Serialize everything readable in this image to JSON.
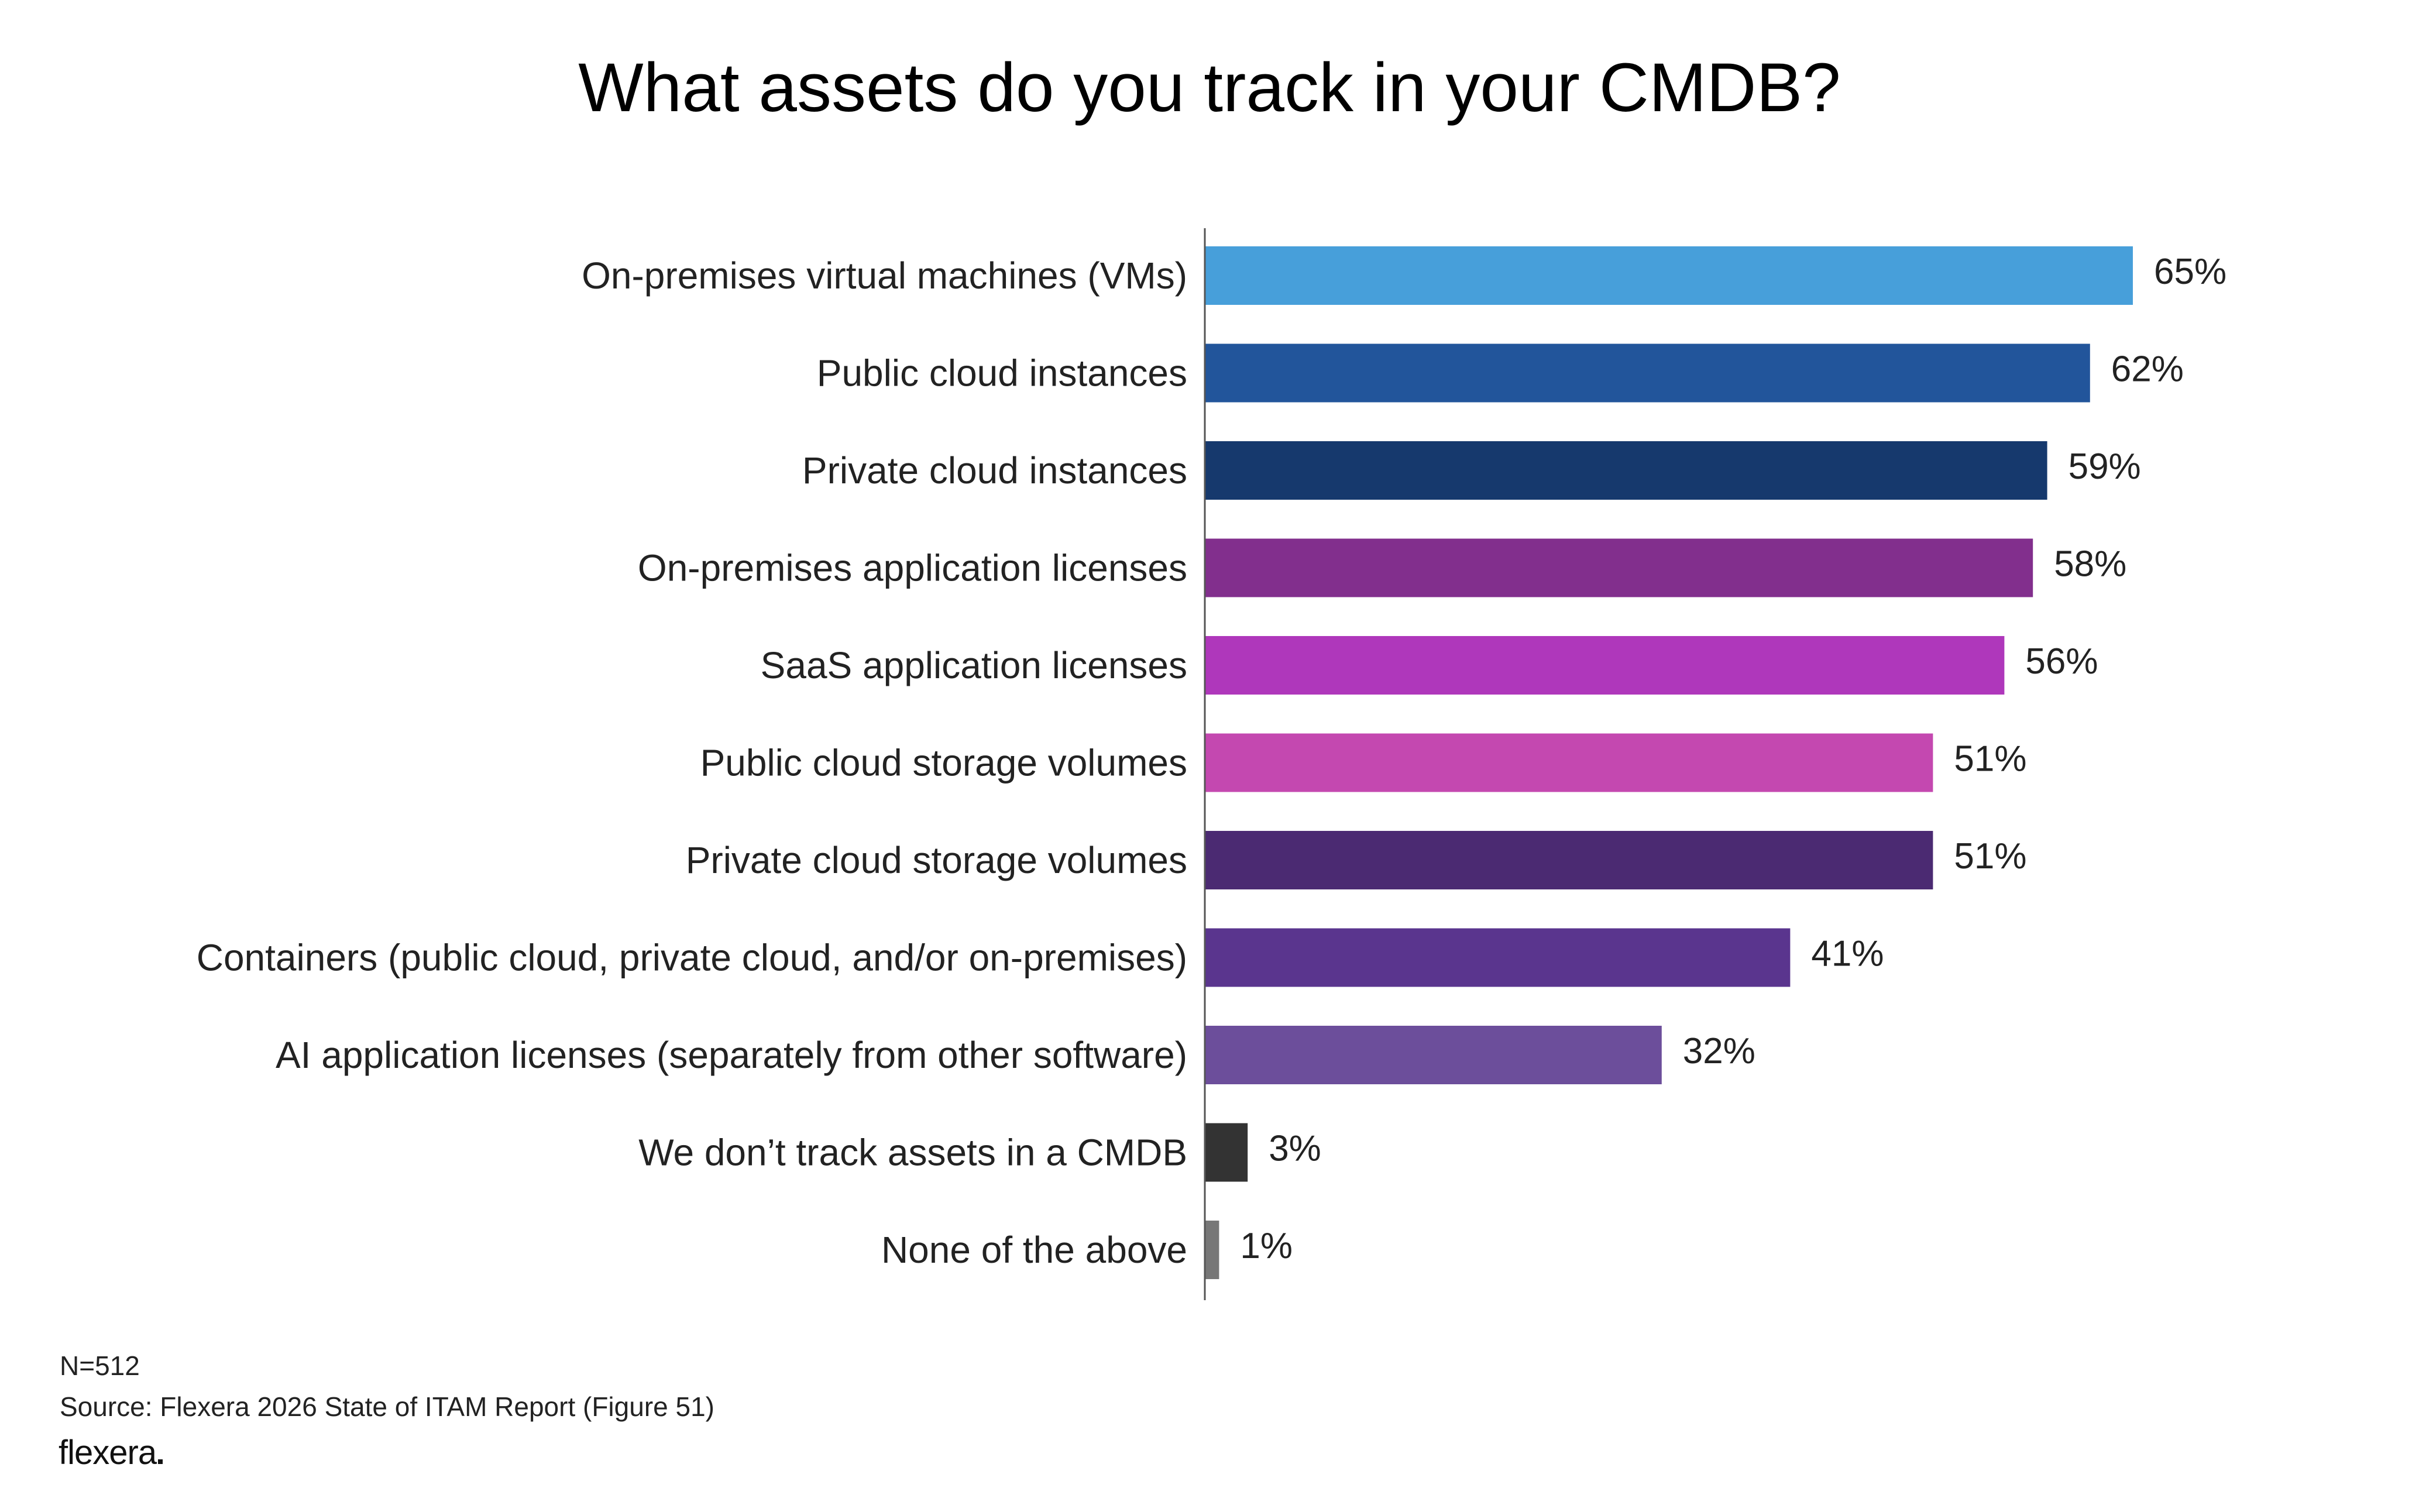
{
  "title": "What assets do you track in your CMDB?",
  "footer": {
    "n": "N=512",
    "source": "Source: Flexera 2026 State of ITAM Report (Figure 51)"
  },
  "logo": {
    "text": "flexera"
  },
  "chart_data": {
    "type": "bar",
    "orientation": "horizontal",
    "title": "What assets do you track in your CMDB?",
    "xlabel": "",
    "ylabel": "",
    "xlim": [
      0,
      100
    ],
    "grid": false,
    "legend": "none",
    "categories": [
      "On-premises virtual machines (VMs)",
      "Public cloud instances",
      "Private cloud instances",
      "On-premises application licenses",
      "SaaS application licenses",
      "Public cloud storage volumes",
      "Private cloud storage volumes",
      "Containers (public cloud, private cloud, and/or on-premises)",
      "AI application licenses (separately from other software)",
      "We don’t track assets in a CMDB",
      "None of the above"
    ],
    "values": [
      65,
      62,
      59,
      58,
      56,
      51,
      51,
      41,
      32,
      3,
      1
    ],
    "value_labels": [
      "65%",
      "62%",
      "59%",
      "58%",
      "56%",
      "51%",
      "51%",
      "41%",
      "32%",
      "3%",
      "1%"
    ],
    "colors": [
      "#479fda",
      "#22559b",
      "#16396d",
      "#822f8d",
      "#af37bb",
      "#c448b0",
      "#4b2a72",
      "#5a358e",
      "#6c4e9b",
      "#333333",
      "#777777"
    ],
    "axis_color": "#555555"
  }
}
